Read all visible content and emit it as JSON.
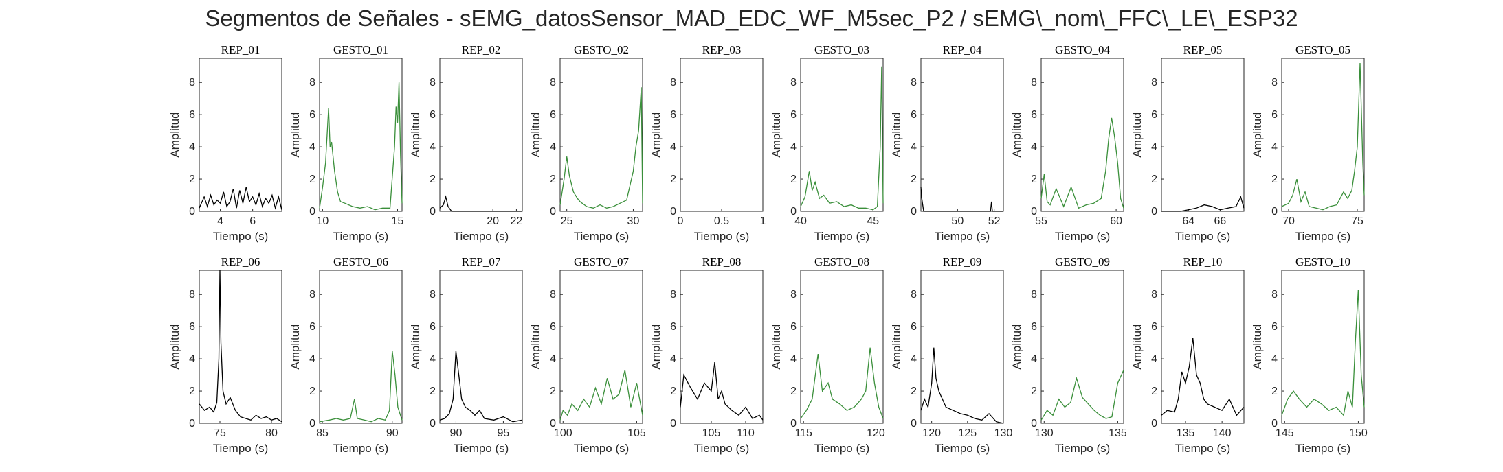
{
  "figure": {
    "title": "Segmentos de Señales - sEMG_datosSensor_MAD_EDC_WF_M5sec_P2 / sEMG\\_nom\\_FFC\\_LE\\_ESP32"
  },
  "colors": {
    "rep": "#000000",
    "gesto": "#3a8f3a",
    "axis": "#262626"
  },
  "chart_data": [
    {
      "type": "line",
      "title": "REP_01",
      "kind": "rep",
      "xlabel": "Tiempo (s)",
      "ylabel": "Amplitud",
      "xlim": [
        2.7,
        7.8
      ],
      "ylim": [
        0,
        9.5
      ],
      "xticks": [
        4,
        6
      ],
      "yticks": [
        0,
        2,
        4,
        6,
        8
      ],
      "x": [
        2.7,
        3.0,
        3.2,
        3.4,
        3.6,
        3.8,
        4.0,
        4.2,
        4.4,
        4.6,
        4.8,
        5.0,
        5.2,
        5.4,
        5.6,
        5.8,
        6.0,
        6.2,
        6.4,
        6.6,
        6.8,
        7.0,
        7.2,
        7.4,
        7.6,
        7.8
      ],
      "y": [
        0.2,
        0.9,
        0.3,
        1.0,
        0.4,
        0.7,
        0.5,
        1.2,
        0.3,
        0.6,
        1.4,
        0.2,
        1.3,
        0.5,
        1.5,
        0.6,
        0.9,
        0.4,
        1.1,
        0.3,
        0.8,
        0.5,
        1.0,
        0.2,
        0.9,
        0.1
      ]
    },
    {
      "type": "line",
      "title": "GESTO_01",
      "kind": "gesto",
      "xlabel": "Tiempo (s)",
      "ylabel": "Amplitud",
      "xlim": [
        9.8,
        15.3
      ],
      "ylim": [
        0,
        9.5
      ],
      "xticks": [
        10,
        15
      ],
      "yticks": [
        0,
        2,
        4,
        6,
        8
      ],
      "x": [
        9.8,
        10.0,
        10.2,
        10.4,
        10.5,
        10.6,
        10.8,
        11.0,
        11.2,
        11.5,
        12.0,
        12.5,
        13.0,
        13.5,
        14.0,
        14.5,
        14.8,
        14.9,
        15.0,
        15.1,
        15.2,
        15.3
      ],
      "y": [
        0.2,
        1.5,
        3.0,
        6.4,
        4.0,
        4.3,
        2.5,
        1.2,
        0.6,
        0.5,
        0.3,
        0.2,
        0.3,
        0.1,
        0.2,
        0.2,
        4.0,
        6.5,
        5.5,
        8.0,
        3.5,
        0.5
      ]
    },
    {
      "type": "line",
      "title": "REP_02",
      "kind": "rep",
      "xlabel": "Tiempo (s)",
      "ylabel": "Amplitud",
      "xlim": [
        15.5,
        22.5
      ],
      "ylim": [
        0,
        9.5
      ],
      "xticks": [
        20,
        22
      ],
      "yticks": [
        0,
        2,
        4,
        6,
        8
      ],
      "x": [
        15.5,
        15.8,
        16.0,
        16.2,
        16.5,
        17.0,
        18.0,
        20.0,
        22.5
      ],
      "y": [
        0.2,
        0.4,
        0.9,
        0.3,
        0.0,
        0.0,
        0.0,
        0.0,
        0.0
      ]
    },
    {
      "type": "line",
      "title": "GESTO_02",
      "kind": "gesto",
      "xlabel": "Tiempo (s)",
      "ylabel": "Amplitud",
      "xlim": [
        24.5,
        30.7
      ],
      "ylim": [
        0,
        9.5
      ],
      "xticks": [
        25,
        30
      ],
      "yticks": [
        0,
        2,
        4,
        6,
        8
      ],
      "x": [
        24.5,
        24.8,
        25.0,
        25.2,
        25.5,
        25.8,
        26.0,
        26.5,
        27.0,
        27.5,
        28.0,
        28.5,
        29.0,
        29.5,
        30.0,
        30.2,
        30.4,
        30.6,
        30.7
      ],
      "y": [
        0.4,
        2.0,
        3.4,
        2.2,
        1.2,
        0.8,
        0.6,
        0.3,
        0.2,
        0.4,
        0.2,
        0.3,
        0.5,
        0.7,
        2.5,
        4.0,
        5.0,
        7.7,
        0.5
      ]
    },
    {
      "type": "line",
      "title": "REP_03",
      "kind": "rep",
      "xlabel": "Tiempo (s)",
      "ylabel": "Amplitud",
      "xlim": [
        0,
        1
      ],
      "ylim": [
        0,
        9.5
      ],
      "xticks": [
        0,
        0.5,
        1
      ],
      "yticks": [
        0,
        2,
        4,
        6,
        8
      ],
      "x": [],
      "y": []
    },
    {
      "type": "line",
      "title": "GESTO_03",
      "kind": "gesto",
      "xlabel": "Tiempo (s)",
      "ylabel": "Amplitud",
      "xlim": [
        40,
        45.7
      ],
      "ylim": [
        0,
        9.5
      ],
      "xticks": [
        40,
        45
      ],
      "yticks": [
        0,
        2,
        4,
        6,
        8
      ],
      "x": [
        40.0,
        40.3,
        40.6,
        40.8,
        41.0,
        41.3,
        41.6,
        42.0,
        42.5,
        43.0,
        43.5,
        44.0,
        44.5,
        45.0,
        45.3,
        45.5,
        45.6,
        45.7
      ],
      "y": [
        0.3,
        0.9,
        2.5,
        1.3,
        1.8,
        0.8,
        1.0,
        0.5,
        0.6,
        0.3,
        0.4,
        0.2,
        0.2,
        0.1,
        0.3,
        4.0,
        9.0,
        0.5
      ]
    },
    {
      "type": "line",
      "title": "REP_04",
      "kind": "rep",
      "xlabel": "Tiempo (s)",
      "ylabel": "Amplitud",
      "xlim": [
        48,
        52.5
      ],
      "ylim": [
        0,
        9.5
      ],
      "xticks": [
        50,
        52
      ],
      "yticks": [
        0,
        2,
        4,
        6,
        8
      ],
      "x": [
        48.0,
        48.05,
        48.15,
        48.3,
        49.0,
        50.0,
        51.0,
        51.8,
        51.85,
        51.9,
        52.5
      ],
      "y": [
        1.5,
        0.8,
        0.0,
        0.0,
        0.0,
        0.0,
        0.0,
        0.0,
        0.6,
        0.0,
        0.0
      ]
    },
    {
      "type": "line",
      "title": "GESTO_04",
      "kind": "gesto",
      "xlabel": "Tiempo (s)",
      "ylabel": "Amplitud",
      "xlim": [
        55,
        60.5
      ],
      "ylim": [
        0,
        9.5
      ],
      "xticks": [
        55,
        60
      ],
      "yticks": [
        0,
        2,
        4,
        6,
        8
      ],
      "x": [
        55.0,
        55.2,
        55.4,
        55.6,
        56.0,
        56.5,
        57.0,
        57.5,
        58.0,
        58.5,
        59.0,
        59.3,
        59.5,
        59.7,
        59.9,
        60.1,
        60.3,
        60.5
      ],
      "y": [
        0.8,
        2.3,
        0.6,
        0.4,
        1.4,
        0.3,
        1.5,
        0.2,
        0.4,
        0.5,
        0.8,
        2.5,
        4.5,
        5.8,
        4.6,
        3.0,
        0.8,
        0.2
      ]
    },
    {
      "type": "line",
      "title": "REP_05",
      "kind": "rep",
      "xlabel": "Tiempo (s)",
      "ylabel": "Amplitud",
      "xlim": [
        62.3,
        67.5
      ],
      "ylim": [
        0,
        9.5
      ],
      "xticks": [
        64,
        66
      ],
      "yticks": [
        0,
        2,
        4,
        6,
        8
      ],
      "x": [
        62.3,
        63.0,
        63.5,
        64.0,
        64.5,
        65.0,
        65.5,
        66.0,
        66.5,
        67.0,
        67.3,
        67.5
      ],
      "y": [
        0.0,
        0.0,
        0.0,
        0.1,
        0.2,
        0.4,
        0.3,
        0.1,
        0.2,
        0.3,
        0.9,
        0.2
      ]
    },
    {
      "type": "line",
      "title": "GESTO_05",
      "kind": "gesto",
      "xlabel": "Tiempo (s)",
      "ylabel": "Amplitud",
      "xlim": [
        69.5,
        75.5
      ],
      "ylim": [
        0,
        9.5
      ],
      "xticks": [
        70,
        75
      ],
      "yticks": [
        0,
        2,
        4,
        6,
        8
      ],
      "x": [
        69.5,
        70.0,
        70.3,
        70.6,
        70.9,
        71.2,
        71.5,
        72.0,
        72.5,
        73.0,
        73.5,
        74.0,
        74.3,
        74.6,
        74.8,
        75.0,
        75.2,
        75.4,
        75.5
      ],
      "y": [
        0.3,
        0.5,
        1.0,
        2.0,
        0.6,
        1.2,
        0.3,
        0.2,
        0.1,
        0.3,
        0.4,
        1.2,
        0.8,
        1.3,
        2.5,
        4.0,
        9.2,
        3.0,
        1.0
      ]
    },
    {
      "type": "line",
      "title": "REP_06",
      "kind": "rep",
      "xlabel": "Tiempo (s)",
      "ylabel": "Amplitud",
      "xlim": [
        73,
        81
      ],
      "ylim": [
        0,
        9.5
      ],
      "xticks": [
        75,
        80
      ],
      "yticks": [
        0,
        2,
        4,
        6,
        8
      ],
      "x": [
        73.0,
        73.5,
        74.0,
        74.4,
        74.7,
        74.9,
        75.0,
        75.1,
        75.3,
        75.6,
        76.0,
        76.5,
        77.0,
        77.5,
        78.0,
        78.5,
        79.0,
        79.5,
        80.0,
        80.5,
        81.0
      ],
      "y": [
        1.2,
        0.8,
        1.0,
        0.7,
        1.3,
        4.0,
        9.5,
        5.0,
        2.0,
        1.2,
        1.6,
        0.8,
        0.4,
        0.3,
        0.2,
        0.5,
        0.3,
        0.4,
        0.2,
        0.3,
        0.1
      ]
    },
    {
      "type": "line",
      "title": "GESTO_06",
      "kind": "gesto",
      "xlabel": "Tiempo (s)",
      "ylabel": "Amplitud",
      "xlim": [
        84.8,
        90.7
      ],
      "ylim": [
        0,
        9.5
      ],
      "xticks": [
        85,
        90
      ],
      "yticks": [
        0,
        2,
        4,
        6,
        8
      ],
      "x": [
        84.8,
        85.5,
        86.0,
        86.5,
        87.0,
        87.3,
        87.5,
        88.0,
        88.5,
        89.0,
        89.5,
        89.8,
        90.0,
        90.2,
        90.4,
        90.7
      ],
      "y": [
        0.1,
        0.2,
        0.3,
        0.2,
        0.3,
        1.5,
        0.3,
        0.2,
        0.1,
        0.3,
        0.2,
        0.8,
        4.5,
        3.0,
        1.0,
        0.2
      ]
    },
    {
      "type": "line",
      "title": "REP_07",
      "kind": "rep",
      "xlabel": "Tiempo (s)",
      "ylabel": "Amplitud",
      "xlim": [
        88.3,
        97
      ],
      "ylim": [
        0,
        9.5
      ],
      "xticks": [
        90,
        95
      ],
      "yticks": [
        0,
        2,
        4,
        6,
        8
      ],
      "x": [
        88.3,
        88.8,
        89.3,
        89.7,
        90.0,
        90.3,
        90.6,
        91.0,
        91.5,
        92.0,
        92.5,
        93.0,
        94.0,
        95.0,
        96.0,
        97.0
      ],
      "y": [
        0.2,
        0.3,
        0.6,
        1.5,
        4.5,
        3.0,
        1.5,
        1.0,
        0.8,
        0.5,
        0.8,
        0.3,
        0.2,
        0.4,
        0.1,
        0.2
      ]
    },
    {
      "type": "line",
      "title": "GESTO_07",
      "kind": "gesto",
      "xlabel": "Tiempo (s)",
      "ylabel": "Amplitud",
      "xlim": [
        99.8,
        105.4
      ],
      "ylim": [
        0,
        9.5
      ],
      "xticks": [
        100,
        105
      ],
      "yticks": [
        0,
        2,
        4,
        6,
        8
      ],
      "x": [
        99.8,
        100.0,
        100.3,
        100.6,
        101.0,
        101.4,
        101.8,
        102.2,
        102.6,
        103.0,
        103.4,
        103.8,
        104.2,
        104.6,
        105.0,
        105.4
      ],
      "y": [
        0.2,
        0.8,
        0.5,
        1.2,
        0.8,
        1.5,
        1.0,
        2.2,
        1.2,
        2.8,
        1.5,
        1.8,
        3.3,
        1.0,
        2.5,
        0.5
      ]
    },
    {
      "type": "line",
      "title": "REP_08",
      "kind": "rep",
      "xlabel": "Tiempo (s)",
      "ylabel": "Amplitud",
      "xlim": [
        100.5,
        112.5
      ],
      "ylim": [
        0,
        9.5
      ],
      "xticks": [
        105,
        110
      ],
      "yticks": [
        0,
        2,
        4,
        6,
        8
      ],
      "x": [
        100.5,
        101.0,
        102.0,
        103.0,
        104.0,
        105.0,
        105.5,
        106.0,
        106.5,
        107.0,
        108.0,
        109.0,
        110.0,
        111.0,
        112.0,
        112.5
      ],
      "y": [
        1.0,
        3.0,
        2.2,
        1.5,
        2.5,
        2.0,
        3.8,
        1.5,
        2.0,
        1.2,
        0.8,
        0.5,
        1.0,
        0.3,
        0.5,
        0.2
      ]
    },
    {
      "type": "line",
      "title": "GESTO_08",
      "kind": "gesto",
      "xlabel": "Tiempo (s)",
      "ylabel": "Amplitud",
      "xlim": [
        114.8,
        120.5
      ],
      "ylim": [
        0,
        9.5
      ],
      "xticks": [
        115,
        120
      ],
      "yticks": [
        0,
        2,
        4,
        6,
        8
      ],
      "x": [
        114.8,
        115.2,
        115.6,
        116.0,
        116.3,
        116.7,
        117.0,
        117.5,
        118.0,
        118.5,
        119.0,
        119.3,
        119.6,
        119.9,
        120.2,
        120.5
      ],
      "y": [
        0.3,
        0.8,
        1.5,
        4.3,
        2.0,
        2.5,
        1.5,
        1.2,
        0.8,
        1.0,
        1.5,
        2.0,
        4.7,
        2.5,
        1.0,
        0.3
      ]
    },
    {
      "type": "line",
      "title": "REP_09",
      "kind": "rep",
      "xlabel": "Tiempo (s)",
      "ylabel": "Amplitud",
      "xlim": [
        118.5,
        130
      ],
      "ylim": [
        0,
        9.5
      ],
      "xticks": [
        120,
        125,
        130
      ],
      "yticks": [
        0,
        2,
        4,
        6,
        8
      ],
      "x": [
        118.5,
        119.0,
        119.5,
        120.0,
        120.3,
        120.6,
        121.0,
        122.0,
        123.0,
        124.0,
        125.0,
        126.0,
        127.0,
        128.0,
        129.0,
        130.0
      ],
      "y": [
        0.8,
        1.5,
        1.0,
        2.5,
        4.7,
        2.8,
        2.0,
        1.0,
        0.8,
        0.6,
        0.5,
        0.3,
        0.2,
        0.6,
        0.1,
        0.0
      ]
    },
    {
      "type": "line",
      "title": "GESTO_09",
      "kind": "gesto",
      "xlabel": "Tiempo (s)",
      "ylabel": "Amplitud",
      "xlim": [
        129.8,
        135.4
      ],
      "ylim": [
        0,
        9.5
      ],
      "xticks": [
        130,
        135
      ],
      "yticks": [
        0,
        2,
        4,
        6,
        8
      ],
      "x": [
        129.8,
        130.2,
        130.6,
        131.0,
        131.4,
        131.8,
        132.2,
        132.6,
        133.0,
        133.4,
        133.8,
        134.2,
        134.6,
        135.0,
        135.4
      ],
      "y": [
        0.2,
        0.8,
        0.5,
        1.5,
        1.0,
        1.3,
        2.8,
        1.6,
        1.2,
        0.8,
        0.5,
        0.3,
        0.4,
        2.5,
        3.3
      ]
    },
    {
      "type": "line",
      "title": "REP_10",
      "kind": "rep",
      "xlabel": "Tiempo (s)",
      "ylabel": "Amplitud",
      "xlim": [
        131.7,
        143
      ],
      "ylim": [
        0,
        9.5
      ],
      "xticks": [
        135,
        140
      ],
      "yticks": [
        0,
        2,
        4,
        6,
        8
      ],
      "x": [
        131.7,
        132.5,
        133.5,
        134.0,
        134.5,
        135.0,
        135.5,
        136.0,
        136.5,
        137.0,
        137.5,
        138.0,
        139.0,
        140.0,
        141.0,
        142.0,
        143.0
      ],
      "y": [
        0.5,
        0.8,
        0.7,
        1.5,
        3.2,
        2.5,
        3.5,
        5.3,
        3.0,
        2.5,
        1.5,
        1.2,
        1.0,
        0.8,
        1.5,
        0.5,
        1.0
      ]
    },
    {
      "type": "line",
      "title": "GESTO_10",
      "kind": "gesto",
      "xlabel": "Tiempo (s)",
      "ylabel": "Amplitud",
      "xlim": [
        144.8,
        150.4
      ],
      "ylim": [
        0,
        9.5
      ],
      "xticks": [
        145,
        150
      ],
      "yticks": [
        0,
        2,
        4,
        6,
        8
      ],
      "x": [
        144.8,
        145.2,
        145.6,
        146.0,
        146.5,
        147.0,
        147.5,
        148.0,
        148.5,
        149.0,
        149.3,
        149.6,
        149.8,
        150.0,
        150.2,
        150.4
      ],
      "y": [
        0.5,
        1.5,
        2.0,
        1.5,
        1.0,
        1.5,
        1.2,
        0.8,
        1.0,
        0.5,
        2.0,
        1.0,
        5.0,
        8.3,
        3.0,
        1.0
      ]
    }
  ]
}
